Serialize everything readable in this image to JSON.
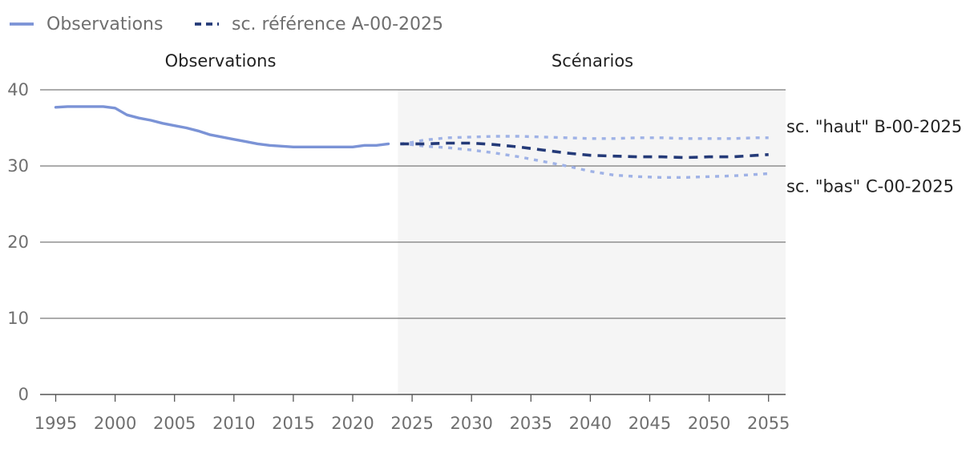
{
  "chart_data": {
    "type": "line",
    "legend": [
      {
        "name": "Observations",
        "style": "solid",
        "color": "#7b93d6"
      },
      {
        "name": "sc. référence A-00-2025",
        "style": "dashed",
        "color": "#243a78"
      }
    ],
    "sections": [
      {
        "label": "Observations",
        "from": 1994.5,
        "to": 2023.8
      },
      {
        "label": "Scénarios",
        "from": 2023.8,
        "to": 2056.3
      }
    ],
    "x_ticks": [
      1995,
      2000,
      2005,
      2010,
      2015,
      2020,
      2025,
      2030,
      2035,
      2040,
      2045,
      2050,
      2055
    ],
    "y_ticks": [
      0,
      10,
      20,
      30,
      40
    ],
    "xlim": [
      1994.5,
      2056.3
    ],
    "ylim": [
      0,
      40
    ],
    "series": [
      {
        "name": "Observations",
        "style": "solid",
        "color": "#7b93d6",
        "x": [
          1995,
          1996,
          1997,
          1998,
          1999,
          2000,
          2001,
          2002,
          2003,
          2004,
          2005,
          2006,
          2007,
          2008,
          2009,
          2010,
          2011,
          2012,
          2013,
          2014,
          2015,
          2016,
          2017,
          2018,
          2019,
          2020,
          2021,
          2022,
          2023
        ],
        "values": [
          37.7,
          37.8,
          37.8,
          37.8,
          37.8,
          37.6,
          36.7,
          36.3,
          36.0,
          35.6,
          35.3,
          35.0,
          34.6,
          34.1,
          33.8,
          33.5,
          33.2,
          32.9,
          32.7,
          32.6,
          32.5,
          32.5,
          32.5,
          32.5,
          32.5,
          32.5,
          32.7,
          32.7,
          32.9
        ]
      },
      {
        "name": "sc. référence A-00-2025",
        "style": "dashed",
        "color": "#243a78",
        "x": [
          2024,
          2025,
          2026,
          2028,
          2030,
          2032,
          2034,
          2036,
          2038,
          2040,
          2042,
          2044,
          2046,
          2048,
          2050,
          2052,
          2054,
          2055
        ],
        "values": [
          32.9,
          32.9,
          32.9,
          33.0,
          33.0,
          32.8,
          32.5,
          32.1,
          31.7,
          31.4,
          31.3,
          31.2,
          31.2,
          31.1,
          31.2,
          31.2,
          31.4,
          31.5
        ]
      },
      {
        "name": "sc. \"haut\" B-00-2025",
        "style": "dotted",
        "color": "#9fb2e6",
        "x": [
          2024,
          2025,
          2026,
          2028,
          2030,
          2032,
          2034,
          2036,
          2038,
          2040,
          2042,
          2044,
          2046,
          2048,
          2050,
          2052,
          2054,
          2055
        ],
        "values": [
          32.9,
          33.1,
          33.4,
          33.7,
          33.8,
          33.9,
          33.9,
          33.8,
          33.7,
          33.6,
          33.6,
          33.7,
          33.7,
          33.6,
          33.6,
          33.6,
          33.7,
          33.7
        ]
      },
      {
        "name": "sc. \"bas\" C-00-2025",
        "style": "dotted",
        "color": "#9fb2e6",
        "x": [
          2024,
          2025,
          2026,
          2028,
          2030,
          2032,
          2034,
          2036,
          2038,
          2040,
          2042,
          2044,
          2046,
          2048,
          2050,
          2052,
          2054,
          2055
        ],
        "values": [
          32.9,
          32.8,
          32.6,
          32.4,
          32.1,
          31.7,
          31.2,
          30.6,
          30.0,
          29.3,
          28.8,
          28.6,
          28.5,
          28.5,
          28.6,
          28.7,
          28.9,
          29.0
        ]
      }
    ],
    "end_labels": [
      {
        "series": "sc. \"haut\" B-00-2025",
        "text": "sc. \"haut\" B-00-2025"
      },
      {
        "series": "sc. \"bas\" C-00-2025",
        "text": "sc. \"bas\" C-00-2025"
      }
    ]
  }
}
